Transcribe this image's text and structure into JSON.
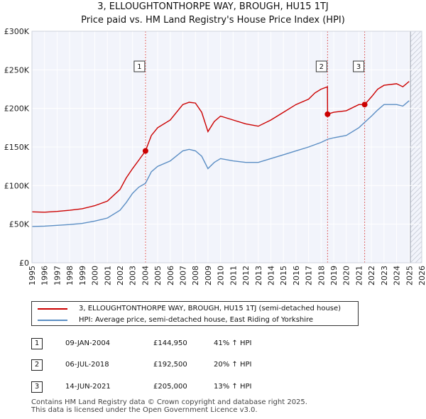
{
  "title_line1": "3, ELLOUGHTONTHORPE WAY, BROUGH, HU15 1TJ",
  "title_line2": "Price paid vs. HM Land Registry's House Price Index (HPI)",
  "chart_data": {
    "type": "line",
    "xlim": [
      1995,
      2026
    ],
    "ylim": [
      0,
      300000
    ],
    "x_ticks": [
      "1995",
      "1996",
      "1997",
      "1998",
      "1999",
      "2000",
      "2001",
      "2002",
      "2003",
      "2004",
      "2005",
      "2006",
      "2007",
      "2008",
      "2009",
      "2010",
      "2011",
      "2012",
      "2013",
      "2014",
      "2015",
      "2016",
      "2017",
      "2018",
      "2019",
      "2020",
      "2021",
      "2022",
      "2023",
      "2024",
      "2025",
      "2026"
    ],
    "y_ticks": [
      {
        "value": 0,
        "label": "£0"
      },
      {
        "value": 50000,
        "label": "£50K"
      },
      {
        "value": 100000,
        "label": "£100K"
      },
      {
        "value": 150000,
        "label": "£150K"
      },
      {
        "value": 200000,
        "label": "£200K"
      },
      {
        "value": 250000,
        "label": "£250K"
      },
      {
        "value": 300000,
        "label": "£300K"
      }
    ],
    "future_from": 2025.1,
    "series": [
      {
        "name": "3, ELLOUGHTONTHORPE WAY, BROUGH, HU15 1TJ (semi-detached house)",
        "color": "#cc0000",
        "points": [
          [
            1995,
            66000
          ],
          [
            1996,
            65500
          ],
          [
            1997,
            66500
          ],
          [
            1998,
            68000
          ],
          [
            1999,
            70000
          ],
          [
            2000,
            74000
          ],
          [
            2001,
            80000
          ],
          [
            2002,
            95000
          ],
          [
            2002.5,
            110000
          ],
          [
            2003,
            122000
          ],
          [
            2003.5,
            133000
          ],
          [
            2004.03,
            144950
          ],
          [
            2004.5,
            165000
          ],
          [
            2005,
            175000
          ],
          [
            2006,
            185000
          ],
          [
            2007,
            205000
          ],
          [
            2007.5,
            208000
          ],
          [
            2008,
            207000
          ],
          [
            2008.5,
            195000
          ],
          [
            2009,
            170000
          ],
          [
            2009.5,
            183000
          ],
          [
            2010,
            190000
          ],
          [
            2011,
            185000
          ],
          [
            2012,
            180000
          ],
          [
            2013,
            177000
          ],
          [
            2014,
            185000
          ],
          [
            2015,
            195000
          ],
          [
            2016,
            205000
          ],
          [
            2017,
            212000
          ],
          [
            2017.5,
            220000
          ],
          [
            2018,
            225000
          ],
          [
            2018.5,
            228000
          ],
          [
            2018.51,
            192500
          ],
          [
            2019,
            195000
          ],
          [
            2020,
            197000
          ],
          [
            2021,
            205000
          ],
          [
            2021.46,
            205000
          ],
          [
            2022,
            215000
          ],
          [
            2022.5,
            225000
          ],
          [
            2023,
            230000
          ],
          [
            2024,
            232000
          ],
          [
            2024.5,
            228000
          ],
          [
            2025,
            235000
          ]
        ]
      },
      {
        "name": "HPI: Average price, semi-detached house, East Riding of Yorkshire",
        "color": "#5b8ec4",
        "points": [
          [
            1995,
            47000
          ],
          [
            1996,
            47500
          ],
          [
            1997,
            48500
          ],
          [
            1998,
            49500
          ],
          [
            1999,
            51000
          ],
          [
            2000,
            54000
          ],
          [
            2001,
            58000
          ],
          [
            2002,
            68000
          ],
          [
            2002.5,
            78000
          ],
          [
            2003,
            90000
          ],
          [
            2003.5,
            98000
          ],
          [
            2004.03,
            103000
          ],
          [
            2004.5,
            118000
          ],
          [
            2005,
            125000
          ],
          [
            2006,
            132000
          ],
          [
            2007,
            145000
          ],
          [
            2007.5,
            147000
          ],
          [
            2008,
            145000
          ],
          [
            2008.5,
            138000
          ],
          [
            2009,
            122000
          ],
          [
            2009.5,
            130000
          ],
          [
            2010,
            135000
          ],
          [
            2011,
            132000
          ],
          [
            2012,
            130000
          ],
          [
            2013,
            130000
          ],
          [
            2014,
            135000
          ],
          [
            2015,
            140000
          ],
          [
            2016,
            145000
          ],
          [
            2017,
            150000
          ],
          [
            2018,
            156000
          ],
          [
            2018.51,
            160000
          ],
          [
            2019,
            162000
          ],
          [
            2020,
            165000
          ],
          [
            2021,
            175000
          ],
          [
            2021.46,
            182000
          ],
          [
            2022,
            190000
          ],
          [
            2022.5,
            198000
          ],
          [
            2023,
            205000
          ],
          [
            2024,
            205000
          ],
          [
            2024.5,
            203000
          ],
          [
            2025,
            210000
          ]
        ]
      }
    ],
    "transactions": [
      {
        "num": "1",
        "x": 2004.03,
        "price": 144950,
        "date": "09-JAN-2004",
        "price_label": "£144,950",
        "hpi_label": "41% ↑ HPI"
      },
      {
        "num": "2",
        "x": 2018.51,
        "price": 192500,
        "date": "06-JUL-2018",
        "price_label": "£192,500",
        "hpi_label": "20% ↑ HPI"
      },
      {
        "num": "3",
        "x": 2021.46,
        "price": 205000,
        "date": "14-JUN-2021",
        "price_label": "£205,000",
        "hpi_label": "13% ↑ HPI"
      }
    ]
  },
  "legend": {
    "red_label": "3, ELLOUGHTONTHORPE WAY, BROUGH, HU15 1TJ (semi-detached house)",
    "blue_label": "HPI: Average price, semi-detached house, East Riding of Yorkshire",
    "red_color": "#cc0000",
    "blue_color": "#5b8ec4"
  },
  "sales": [
    {
      "num": "1",
      "date": "09-JAN-2004",
      "price": "£144,950",
      "hpi": "41% ↑ HPI"
    },
    {
      "num": "2",
      "date": "06-JUL-2018",
      "price": "£192,500",
      "hpi": "20% ↑ HPI"
    },
    {
      "num": "3",
      "date": "14-JUN-2021",
      "price": "£205,000",
      "hpi": "13% ↑ HPI"
    }
  ],
  "footer": {
    "line1": "Contains HM Land Registry data © Crown copyright and database right 2025.",
    "line2": "This data is licensed under the Open Government Licence v3.0."
  }
}
